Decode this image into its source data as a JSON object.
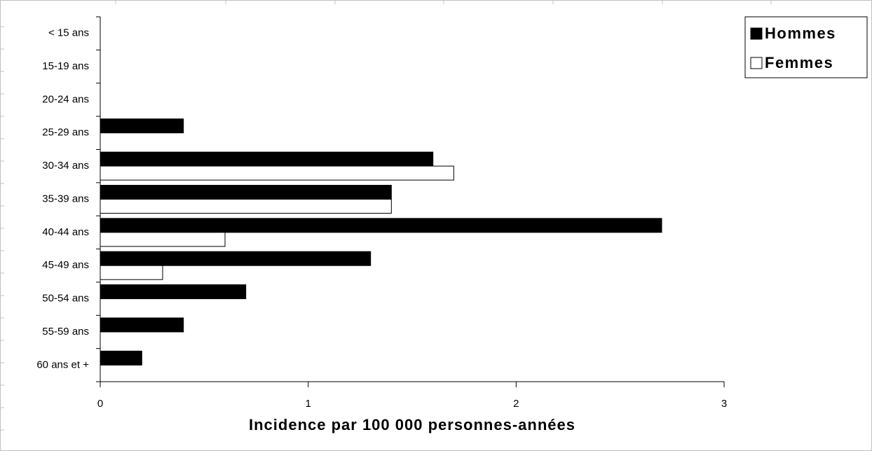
{
  "chart_data": {
    "type": "hbar",
    "xlabel": "Incidence par 100 000 personnes-années",
    "categories": [
      "< 15 ans",
      "15-19 ans",
      "20-24 ans",
      "25-29 ans",
      "30-34 ans",
      "35-39 ans",
      "40-44 ans",
      "45-49 ans",
      "50-54 ans",
      "55-59 ans",
      "60 ans et +"
    ],
    "series": [
      {
        "name": "Hommes",
        "color": "#000000",
        "values": [
          0,
          0,
          0,
          0.4,
          1.6,
          1.4,
          2.7,
          1.3,
          0.7,
          0.4,
          0.2
        ]
      },
      {
        "name": "Femmes",
        "color": "#ffffff",
        "values": [
          0,
          0,
          0,
          0,
          1.7,
          1.4,
          0.6,
          0.3,
          0,
          0,
          0
        ]
      }
    ],
    "xlim": [
      0,
      3
    ],
    "xticks": [
      0,
      1,
      2,
      3
    ],
    "legend": "upper right"
  }
}
